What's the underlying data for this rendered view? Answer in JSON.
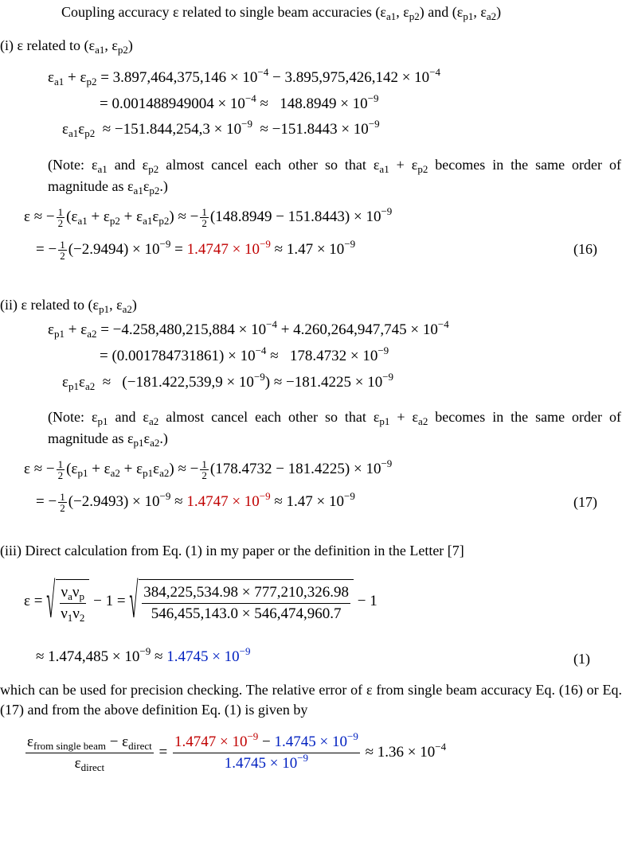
{
  "title": [
    "Coupling accuracy ε related to single beam accuracies (ε",
    "a1",
    ", ε",
    "p2",
    ") and (ε",
    "p1",
    ", ε",
    "a2",
    ")"
  ],
  "sections": [
    {
      "head": [
        "(i) ε related to (ε",
        "a1",
        ", ε",
        "p2",
        ")"
      ],
      "l1": [
        "ε",
        "a1",
        " + ε",
        "p2",
        " = 3.897,464,375,146 × 10",
        "−4",
        " − 3.895,975,426,142 × 10",
        "−4"
      ],
      "l2": [
        "= 0.001488949004 × 10",
        "−4",
        " ≈   148.8949 × 10",
        "−9"
      ],
      "l3": [
        "ε",
        "a1",
        "ε",
        "p2",
        "  ≈ −151.844,254,3 × 10",
        "−9",
        "  ≈ −151.8443 × 10",
        "−9"
      ],
      "note": [
        "(Note: ε",
        "a1",
        " and ε",
        "p2",
        " almost cancel each other so that ε",
        "a1",
        " + ε",
        "p2",
        " becomes in the same order of magnitude as ε",
        "a1",
        "ε",
        "p2",
        ".)"
      ],
      "e1": [
        "ε ≈ −",
        "1",
        "2",
        "(ε",
        "a1",
        " + ε",
        "p2",
        " + ε",
        "a1",
        "ε",
        "p2",
        ") ≈ −",
        "1",
        "2",
        "(148.8949 − 151.8443) × 10",
        "−9"
      ],
      "e2": [
        "= −",
        "1",
        "2",
        "(−2.9494) × 10",
        "−9",
        " = ",
        "1.4747 × 10",
        "−9",
        " ≈ 1.47 × 10",
        "−9"
      ],
      "eq_number": "(16)"
    },
    {
      "head": [
        "(ii) ε related to (ε",
        "p1",
        ", ε",
        "a2",
        ")"
      ],
      "l1": [
        "ε",
        "p1",
        " + ε",
        "a2",
        " = −4.258,480,215,884 × 10",
        "−4",
        " + 4.260,264,947,745 × 10",
        "−4"
      ],
      "l2": [
        "= (0.001784731861) × 10",
        "−4",
        " ≈   178.4732 × 10",
        "−9"
      ],
      "l3": [
        "ε",
        "p1",
        "ε",
        "a2",
        "  ≈   (−181.422,539,9 × 10",
        "−9",
        ") ≈ −181.4225 × 10",
        "−9"
      ],
      "note": [
        "(Note: ε",
        "p1",
        " and ε",
        "a2",
        " almost cancel each other so that ε",
        "p1",
        " + ε",
        "a2",
        " becomes in the same order of magnitude as ε",
        "p1",
        "ε",
        "a2",
        ".)"
      ],
      "e1": [
        "ε ≈ −",
        "1",
        "2",
        "(ε",
        "p1",
        " + ε",
        "a2",
        " + ε",
        "p1",
        "ε",
        "a2",
        ") ≈ −",
        "1",
        "2",
        "(178.4732 − 181.4225) × 10",
        "−9"
      ],
      "e2": [
        "= −",
        "1",
        "2",
        "(−2.9493) × 10",
        "−9",
        " ≈ ",
        "1.4747 × 10",
        "−9",
        " ≈ 1.47 × 10",
        "−9"
      ],
      "eq_number": "(17)"
    }
  ],
  "direct": {
    "head": "(iii) Direct calculation from Eq. (1) in my paper or the definition in the Letter [7]",
    "e1": [
      "ε = ",
      "ν",
      "a",
      "ν",
      "p",
      "ν",
      "1",
      "ν",
      "2",
      " − 1 = ",
      "384,225,534.98 × 777,210,326.98",
      "546,455,143.0 × 546,474,960.7",
      " − 1"
    ],
    "e2": [
      "≈ 1.474,485 × 10",
      "−9",
      " ≈ ",
      "1.4745 × 10",
      "−9"
    ],
    "eq_number": "(1)"
  },
  "check": {
    "text": "which can be used for precision checking.  The relative error of ε from single beam accuracy Eq. (16) or Eq. (17) and from the above definition Eq. (1) is given by",
    "lhs_num": [
      "ε",
      "from single beam",
      " − ε",
      "direct"
    ],
    "lhs_den": [
      "ε",
      "direct"
    ],
    "eq": " = ",
    "rhs_num": [
      "1.4747 × 10",
      "−9",
      " − ",
      "1.4745 × 10",
      "−9"
    ],
    "rhs_den": [
      "1.4745 × 10",
      "−9"
    ],
    "tail": [
      " ≈ 1.36 × 10",
      "−4"
    ]
  }
}
